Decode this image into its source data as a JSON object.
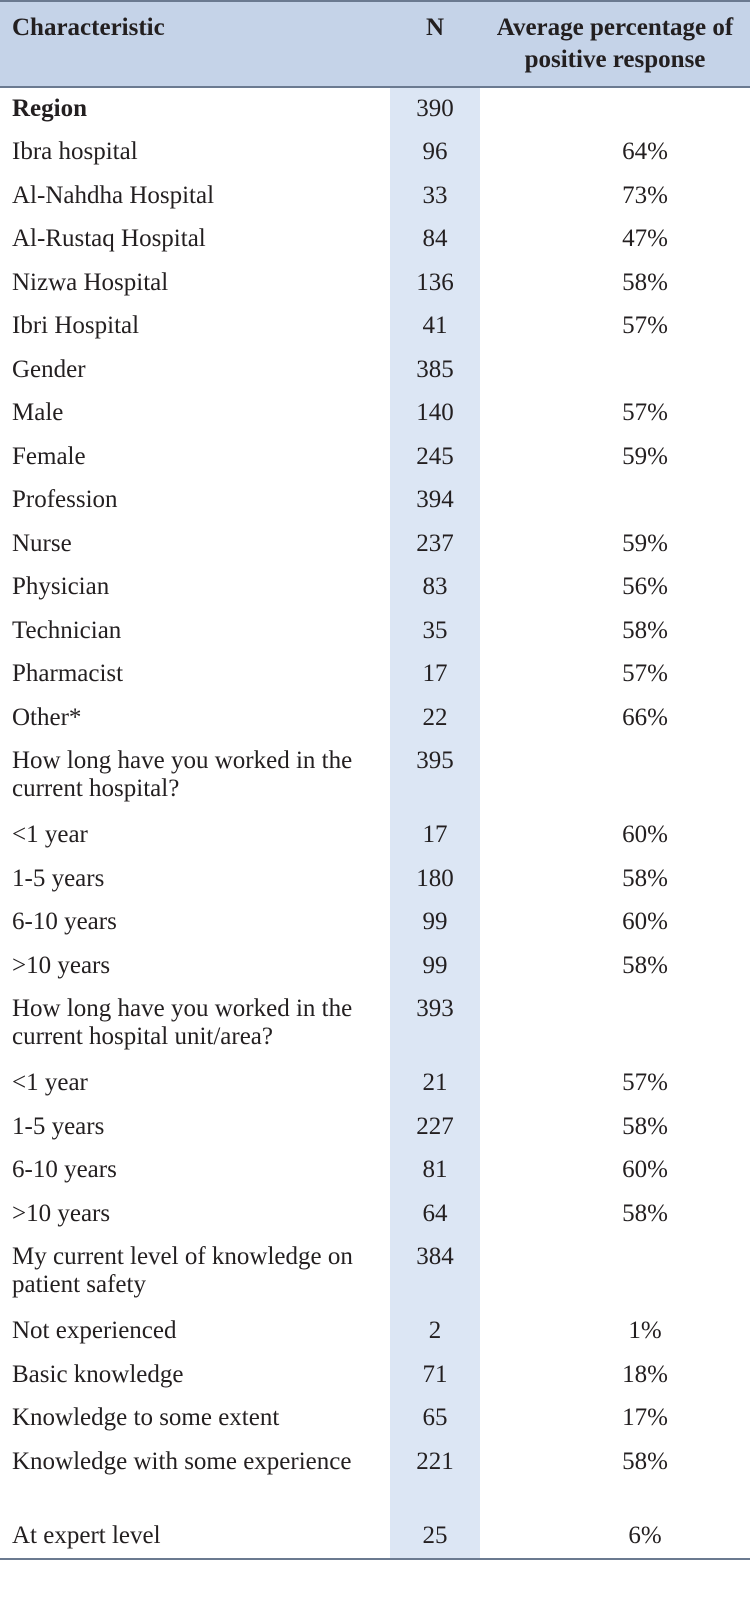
{
  "table": {
    "headers": {
      "characteristic": "Characteristic",
      "n": "N",
      "average": "Average percentage of positive response"
    },
    "rows": [
      {
        "label": "Region",
        "n": "390",
        "pct": "",
        "bold": true
      },
      {
        "label": "Ibra hospital",
        "n": "96",
        "pct": "64%"
      },
      {
        "label": "Al-Nahdha Hospital",
        "n": "33",
        "pct": "73%"
      },
      {
        "label": "Al-Rustaq Hospital",
        "n": "84",
        "pct": "47%"
      },
      {
        "label": "Nizwa Hospital",
        "n": "136",
        "pct": "58%"
      },
      {
        "label": "Ibri Hospital",
        "n": "41",
        "pct": "57%"
      },
      {
        "label": "Gender",
        "n": "385",
        "pct": ""
      },
      {
        "label": "Male",
        "n": "140",
        "pct": "57%"
      },
      {
        "label": "Female",
        "n": "245",
        "pct": "59%"
      },
      {
        "label": "Profession",
        "n": "394",
        "pct": ""
      },
      {
        "label": "Nurse",
        "n": "237",
        "pct": "59%"
      },
      {
        "label": "Physician",
        "n": "83",
        "pct": "56%"
      },
      {
        "label": "Technician",
        "n": "35",
        "pct": "58%"
      },
      {
        "label": "Pharmacist",
        "n": "17",
        "pct": "57%"
      },
      {
        "label": "Other*",
        "n": "22",
        "pct": "66%"
      },
      {
        "label": "How long have you worked in the current hospital?",
        "n": "395",
        "pct": "",
        "tall": true
      },
      {
        "label": "<1 year",
        "n": "17",
        "pct": "60%"
      },
      {
        "label": "1-5 years",
        "n": "180",
        "pct": "58%"
      },
      {
        "label": "6-10 years",
        "n": "99",
        "pct": "60%"
      },
      {
        "label": ">10 years",
        "n": "99",
        "pct": "58%"
      },
      {
        "label": "How long have you worked in the current hospital unit/area?",
        "n": "393",
        "pct": "",
        "tall": true
      },
      {
        "label": "<1 year",
        "n": "21",
        "pct": "57%"
      },
      {
        "label": "1-5 years",
        "n": "227",
        "pct": "58%"
      },
      {
        "label": "6-10 years",
        "n": "81",
        "pct": "60%"
      },
      {
        "label": ">10 years",
        "n": "64",
        "pct": "58%"
      },
      {
        "label": "My current level of knowledge on patient safety",
        "n": "384",
        "pct": "",
        "tall": true
      },
      {
        "label": "Not experienced",
        "n": "2",
        "pct": "1%"
      },
      {
        "label": "Basic knowledge",
        "n": "71",
        "pct": "18%"
      },
      {
        "label": "Knowledge to some extent",
        "n": "65",
        "pct": "17%"
      },
      {
        "label": "Knowledge with some experience",
        "n": "221",
        "pct": "58%",
        "tall": true
      },
      {
        "label": "At expert level",
        "n": "25",
        "pct": "6%"
      }
    ]
  }
}
